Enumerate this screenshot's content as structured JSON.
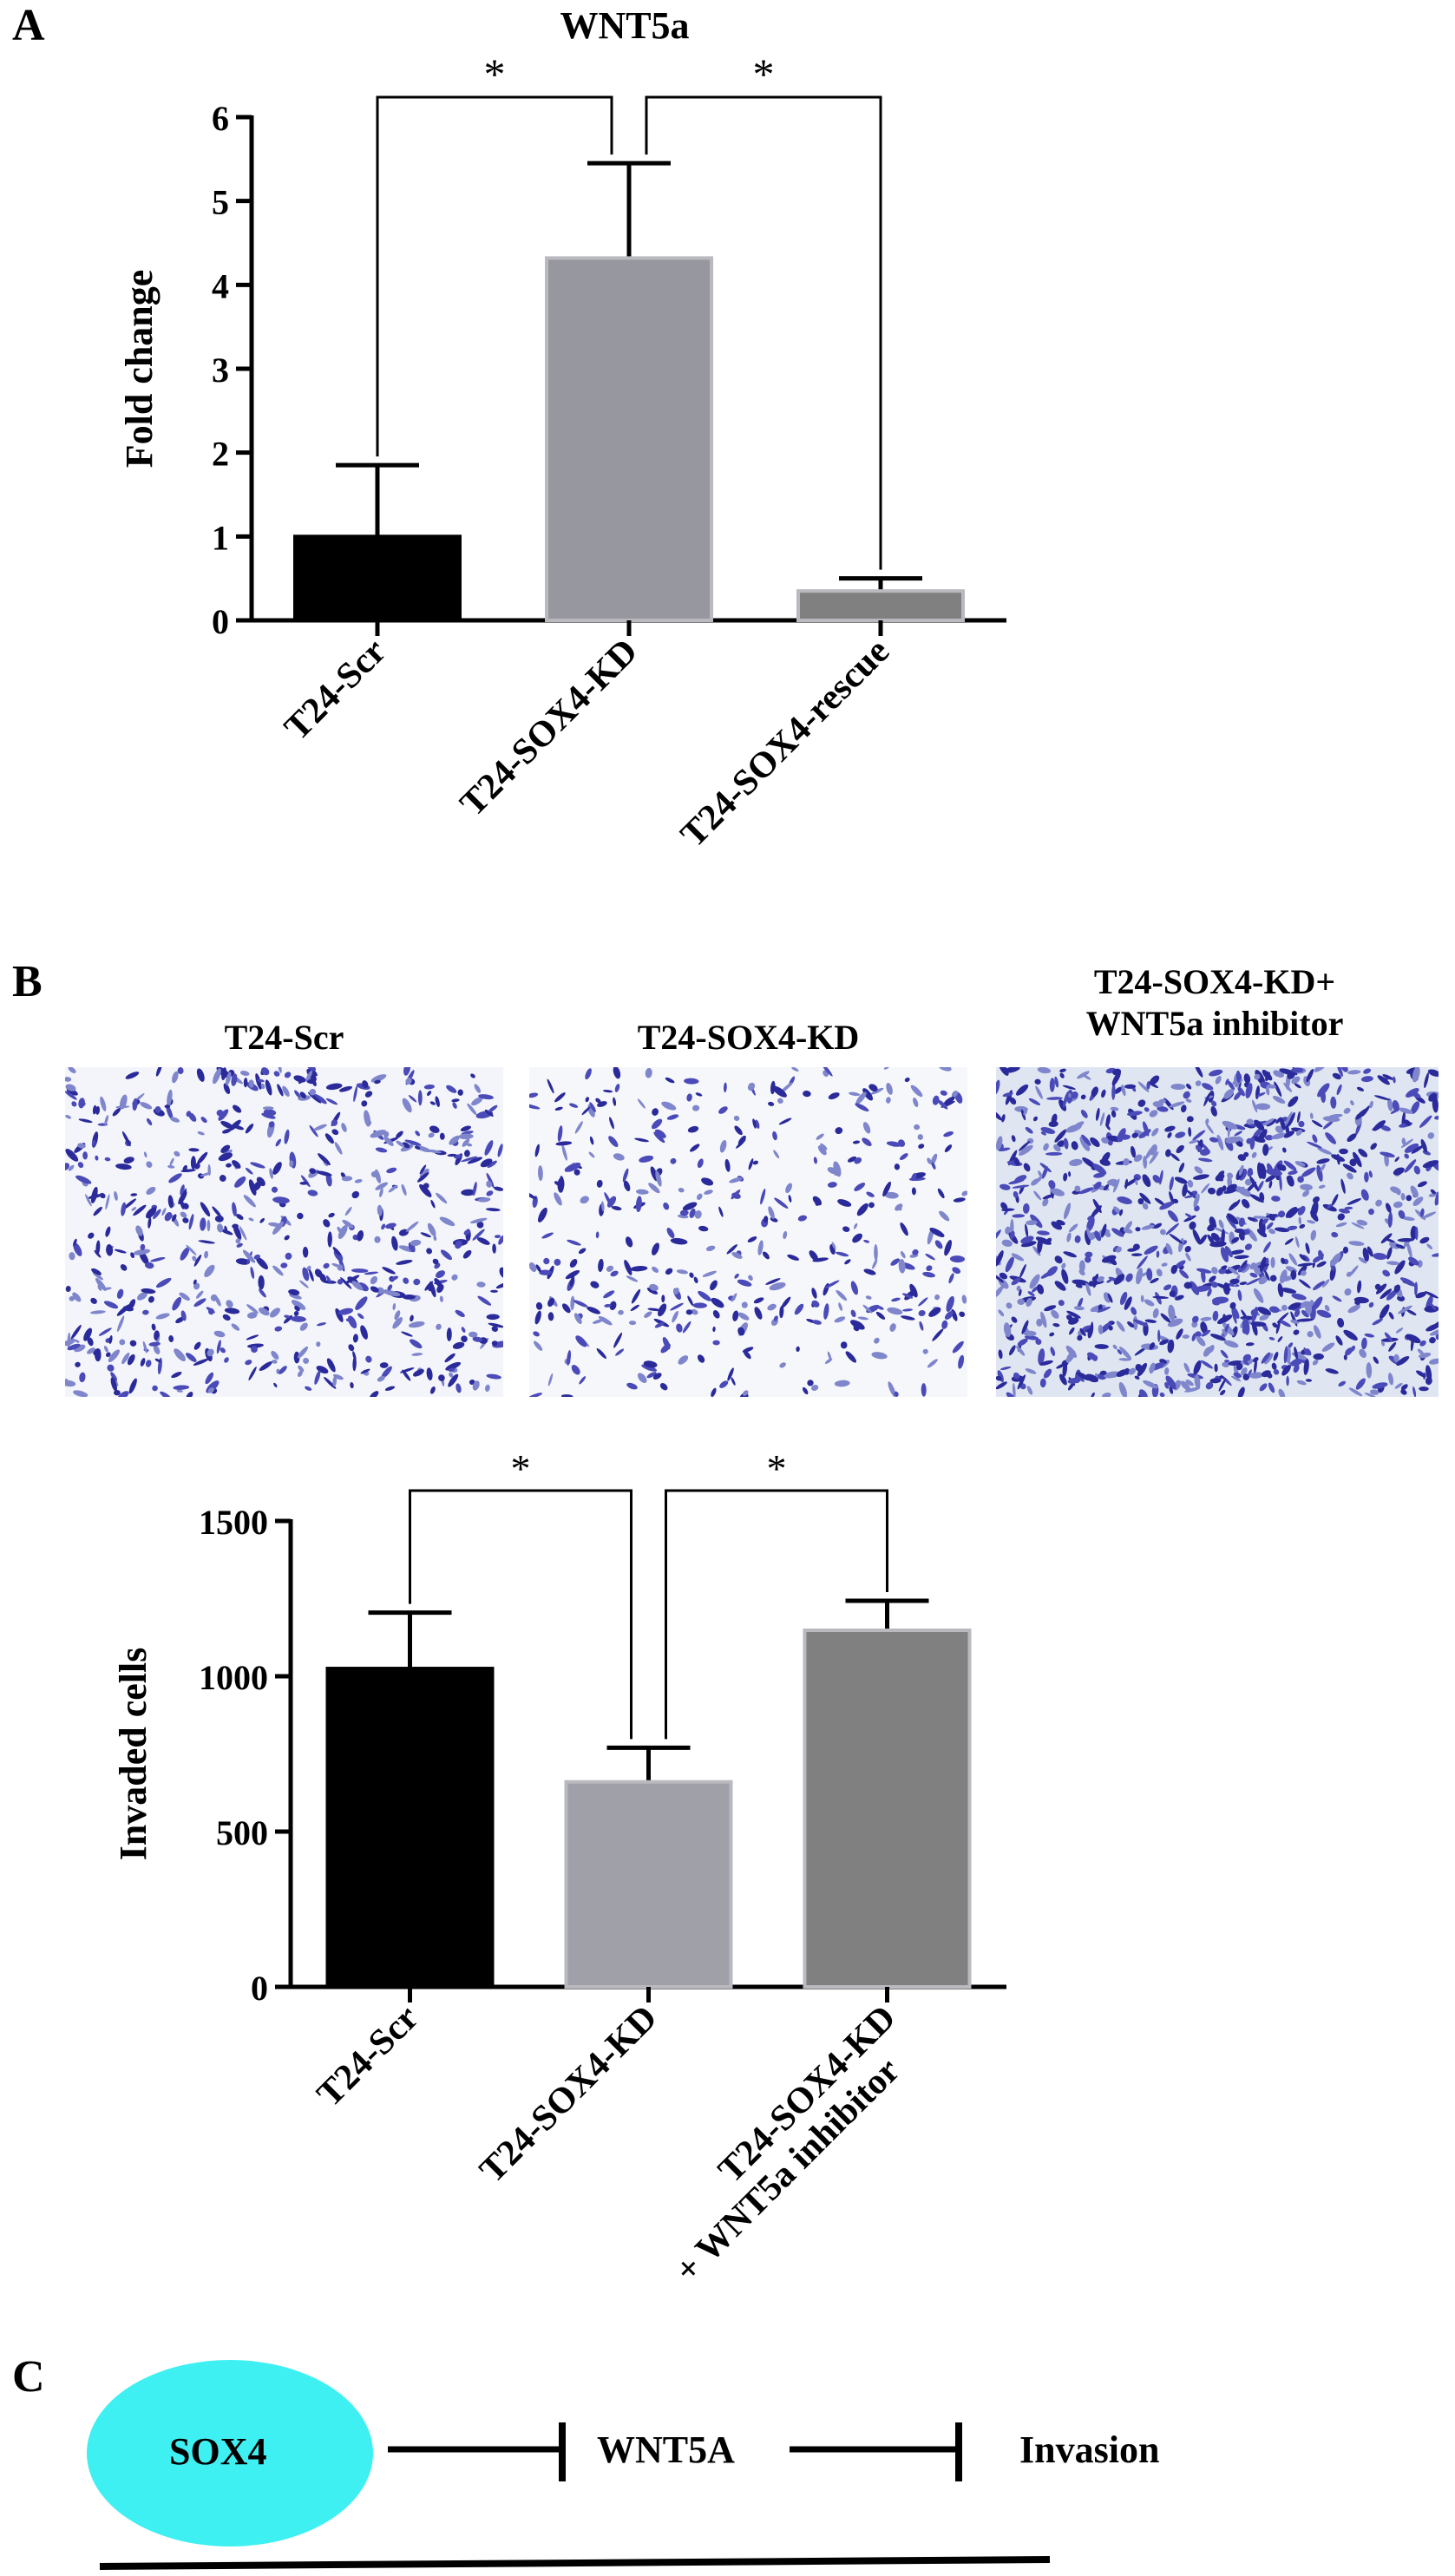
{
  "panel_labels": {
    "a": "A",
    "b": "B",
    "c": "C"
  },
  "chart_data": [
    {
      "type": "bar",
      "title": "WNT5a",
      "ylabel": "Fold change",
      "xlabel": "",
      "categories": [
        "T24-Scr",
        "T24-SOX4-KD",
        "T24-SOX4-rescue"
      ],
      "values": [
        1.0,
        4.32,
        0.35
      ],
      "errors": [
        0.85,
        1.13,
        0.15
      ],
      "colors": [
        "#000000",
        "#97979f",
        "#808080"
      ],
      "ylim": [
        0,
        6
      ],
      "yticks": [
        0,
        1,
        2,
        3,
        4,
        5,
        6
      ],
      "significance": [
        {
          "from": 0,
          "to": 1,
          "label": "*"
        },
        {
          "from": 1,
          "to": 2,
          "label": "*"
        }
      ]
    },
    {
      "type": "bar",
      "title": "",
      "ylabel": "Invaded cells",
      "xlabel": "",
      "categories": [
        "T24-Scr",
        "T24-SOX4-KD",
        "T24-SOX4-KD\n+ WNT5a inhibitor"
      ],
      "values": [
        1025,
        660,
        1148
      ],
      "errors": [
        180,
        110,
        95
      ],
      "colors": [
        "#000000",
        "#a0a0a8",
        "#808080"
      ],
      "ylim": [
        0,
        1500
      ],
      "yticks": [
        0,
        500,
        1000,
        1500
      ],
      "significance": [
        {
          "from": 0,
          "to": 1,
          "label": "*"
        },
        {
          "from": 1,
          "to": 2,
          "label": "*"
        }
      ]
    }
  ],
  "micrographs": [
    {
      "title": "T24-Scr",
      "density": "medium"
    },
    {
      "title": "T24-SOX4-KD",
      "density": "low"
    },
    {
      "title": "T24-SOX4-KD+\nWNT5a inhibitor",
      "density": "high"
    }
  ],
  "schematic": {
    "node1": "SOX4",
    "node2": "WNT5A",
    "node3": "Invasion",
    "node1_color": "#3ef0f2"
  }
}
